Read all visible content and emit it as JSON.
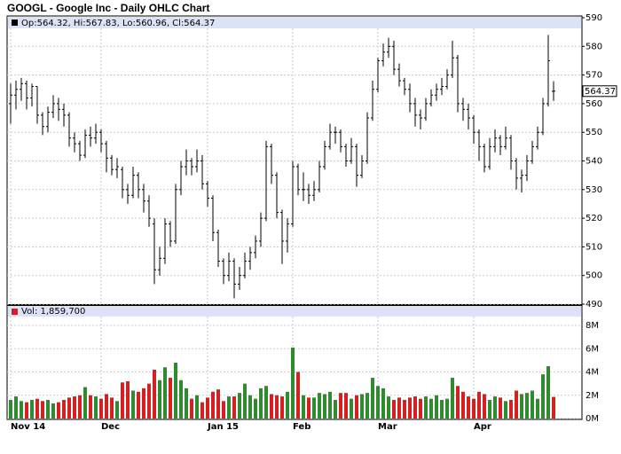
{
  "chart_data": {
    "type": "ohlc",
    "title": "GOOGL - Google Inc - Daily OHLC Chart",
    "legend": "Op:564.32, Hi:567.83, Lo:560.96, Cl:564.37",
    "volume_legend": "Vol: 1,859,700",
    "last_price_label": "564.37",
    "bar_color": "#000000",
    "up_color": "#2e8b2e",
    "down_color": "#d62020",
    "legend_bg": "#dde3f7",
    "grid": true,
    "categories": [
      "Nov 14",
      null,
      null,
      null,
      null,
      null,
      null,
      null,
      null,
      null,
      null,
      null,
      null,
      null,
      null,
      null,
      null,
      "Dec",
      null,
      null,
      null,
      null,
      null,
      null,
      null,
      null,
      null,
      null,
      null,
      null,
      null,
      null,
      null,
      null,
      null,
      null,
      null,
      "Jan 15",
      null,
      null,
      null,
      null,
      null,
      null,
      null,
      null,
      null,
      null,
      null,
      null,
      null,
      null,
      null,
      "Feb",
      null,
      null,
      null,
      null,
      null,
      null,
      null,
      null,
      null,
      null,
      null,
      null,
      null,
      null,
      null,
      "Mar",
      null,
      null,
      null,
      null,
      null,
      null,
      null,
      null,
      null,
      null,
      null,
      null,
      null,
      null,
      null,
      null,
      null,
      "Apr",
      null,
      null,
      null,
      null,
      null,
      null,
      null,
      null,
      null,
      null,
      null,
      null,
      null,
      null,
      null
    ],
    "open": [
      560,
      563,
      565,
      567,
      562,
      566,
      556,
      552,
      557,
      560,
      558,
      556,
      548,
      546,
      542,
      549,
      548,
      550,
      546,
      541,
      537,
      537,
      530,
      528,
      535,
      530,
      526,
      518,
      502,
      506,
      518,
      512,
      530,
      538,
      540,
      538,
      540,
      532,
      527,
      515,
      505,
      500,
      505,
      497,
      500,
      505,
      508,
      512,
      520,
      545,
      535,
      522,
      512,
      518,
      538,
      530,
      530,
      528,
      530,
      538,
      545,
      550,
      550,
      545,
      540,
      545,
      535,
      540,
      555,
      565,
      575,
      578,
      580,
      572,
      568,
      565,
      560,
      556,
      555,
      560,
      563,
      565,
      566,
      570,
      576,
      560,
      558,
      555,
      550,
      545,
      538,
      545,
      548,
      545,
      548,
      540,
      534,
      535,
      540,
      545,
      550,
      560,
      564.32
    ],
    "high": [
      567,
      568,
      569,
      568,
      567,
      566,
      557,
      559,
      563,
      562,
      560,
      557,
      550,
      547,
      551,
      552,
      553,
      551,
      547,
      542,
      541,
      538,
      532,
      538,
      536,
      532,
      528,
      520,
      510,
      520,
      519,
      532,
      540,
      544,
      541,
      544,
      542,
      533,
      528,
      516,
      506,
      508,
      506,
      503,
      508,
      510,
      514,
      522,
      547,
      546,
      536,
      523,
      520,
      540,
      539,
      536,
      532,
      533,
      540,
      547,
      553,
      552,
      551,
      546,
      548,
      546,
      542,
      557,
      568,
      576,
      581,
      583,
      582,
      574,
      569,
      567,
      562,
      558,
      562,
      565,
      567,
      569,
      572,
      582,
      577,
      562,
      560,
      556,
      551,
      546,
      548,
      551,
      549,
      552,
      549,
      541,
      537,
      542,
      547,
      552,
      562,
      584,
      567.83
    ],
    "low": [
      553,
      558,
      561,
      558,
      559,
      553,
      549,
      550,
      555,
      554,
      552,
      545,
      543,
      540,
      541,
      545,
      546,
      543,
      536,
      535,
      534,
      527,
      525,
      527,
      527,
      522,
      517,
      497,
      500,
      504,
      510,
      511,
      528,
      535,
      535,
      536,
      530,
      524,
      512,
      503,
      497,
      498,
      492,
      495,
      499,
      502,
      506,
      510,
      519,
      532,
      520,
      504,
      508,
      517,
      528,
      526,
      525,
      526,
      529,
      537,
      544,
      546,
      543,
      538,
      539,
      531,
      534,
      539,
      554,
      564,
      573,
      576,
      570,
      566,
      563,
      557,
      552,
      551,
      554,
      559,
      561,
      563,
      565,
      569,
      557,
      554,
      551,
      546,
      540,
      536,
      537,
      543,
      542,
      544,
      537,
      530,
      529,
      533,
      539,
      544,
      549,
      559,
      560.96
    ],
    "close": [
      563,
      565,
      567,
      562,
      566,
      556,
      552,
      557,
      560,
      558,
      556,
      548,
      546,
      542,
      549,
      548,
      550,
      546,
      541,
      537,
      538,
      530,
      528,
      535,
      530,
      526,
      520,
      502,
      506,
      518,
      512,
      530,
      538,
      540,
      538,
      540,
      532,
      527,
      515,
      505,
      500,
      505,
      497,
      500,
      505,
      508,
      512,
      520,
      545,
      535,
      522,
      512,
      518,
      538,
      530,
      530,
      528,
      530,
      538,
      545,
      550,
      550,
      545,
      540,
      545,
      535,
      540,
      555,
      565,
      575,
      578,
      580,
      572,
      568,
      565,
      560,
      556,
      555,
      560,
      563,
      565,
      566,
      570,
      576,
      560,
      558,
      555,
      550,
      545,
      538,
      545,
      548,
      545,
      548,
      540,
      534,
      535,
      540,
      545,
      550,
      560,
      575,
      564.37
    ],
    "volume": [
      1.6,
      1.9,
      1.5,
      1.4,
      1.6,
      1.7,
      1.5,
      1.6,
      1.3,
      1.4,
      1.6,
      1.8,
      1.9,
      2.0,
      2.7,
      2.0,
      1.9,
      1.7,
      2.1,
      1.8,
      1.5,
      3.1,
      3.2,
      2.4,
      2.3,
      2.6,
      3.0,
      4.2,
      3.3,
      4.4,
      3.5,
      4.8,
      3.3,
      2.6,
      1.7,
      2.0,
      1.4,
      1.8,
      2.3,
      2.5,
      1.5,
      1.9,
      1.9,
      2.2,
      3.0,
      2.0,
      1.7,
      2.6,
      2.8,
      2.1,
      2.0,
      1.9,
      2.3,
      6.1,
      4.0,
      2.0,
      1.8,
      1.8,
      2.2,
      2.1,
      2.3,
      1.6,
      2.2,
      2.2,
      1.7,
      2.0,
      2.1,
      2.2,
      3.5,
      2.8,
      2.6,
      1.9,
      1.6,
      1.8,
      1.6,
      1.8,
      1.9,
      1.7,
      1.9,
      1.7,
      2.0,
      1.6,
      1.7,
      3.5,
      2.8,
      2.3,
      1.9,
      1.7,
      2.3,
      2.1,
      1.6,
      1.9,
      1.8,
      1.5,
      1.6,
      2.4,
      2.1,
      2.2,
      2.4,
      1.7,
      3.8,
      4.5,
      1.8597
    ],
    "ylim": [
      490,
      590
    ],
    "yticks": [
      490,
      500,
      510,
      520,
      530,
      540,
      550,
      560,
      570,
      580,
      590
    ],
    "volume_ylim": [
      0,
      8
    ],
    "volume_yticks": [
      {
        "value": 0,
        "label": "0M"
      },
      {
        "value": 2,
        "label": "2M"
      },
      {
        "value": 4,
        "label": "4M"
      },
      {
        "value": 6,
        "label": "6M"
      },
      {
        "value": 8,
        "label": "8M"
      }
    ]
  }
}
